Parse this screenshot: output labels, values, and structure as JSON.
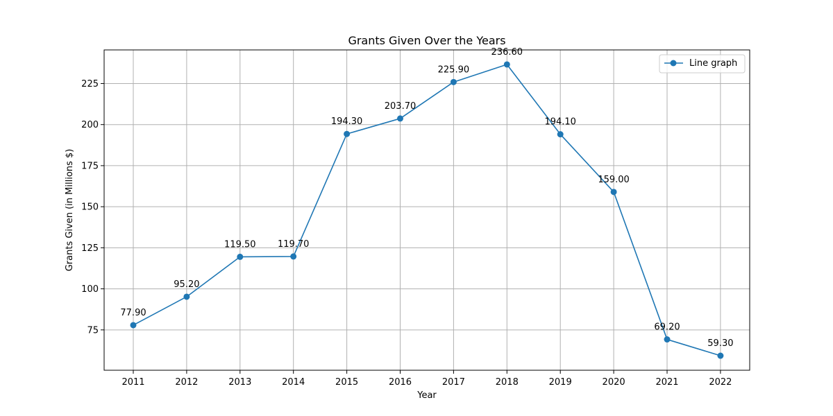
{
  "chart_data": {
    "type": "line",
    "title": "Grants Given Over the Years",
    "xlabel": "Year",
    "ylabel": "Grants Given (in Millions $)",
    "categories": [
      "2011",
      "2012",
      "2013",
      "2014",
      "2015",
      "2016",
      "2017",
      "2018",
      "2019",
      "2020",
      "2021",
      "2022"
    ],
    "series": [
      {
        "name": "Line graph",
        "values": [
          77.9,
          95.2,
          119.5,
          119.7,
          194.3,
          203.7,
          225.9,
          236.6,
          194.1,
          159.0,
          69.2,
          59.3
        ],
        "labels": [
          "77.90",
          "95.20",
          "119.50",
          "119.70",
          "194.30",
          "203.70",
          "225.90",
          "236.60",
          "194.10",
          "159.00",
          "69.20",
          "59.30"
        ],
        "color": "#1f77b4",
        "marker": "circle"
      }
    ],
    "ylim": [
      50.44,
      245.46
    ],
    "yticks": [
      75,
      100,
      125,
      150,
      175,
      200,
      225
    ],
    "grid": true,
    "legend": "top-right"
  }
}
